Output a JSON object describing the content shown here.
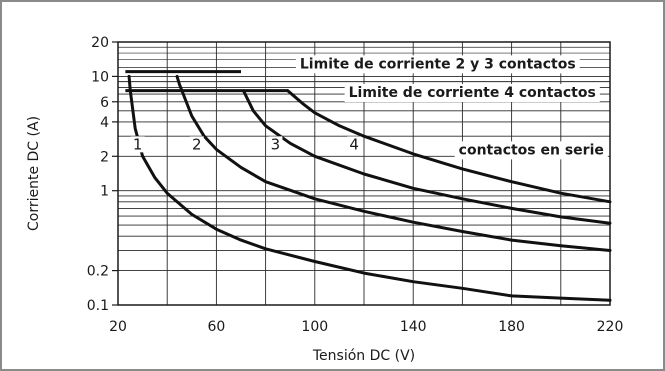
{
  "chart_data": {
    "type": "line",
    "xlabel": "Tensión DC (V)",
    "ylabel": "Corriente DC (A)",
    "xlim": [
      20,
      220
    ],
    "ylim": [
      0.1,
      20
    ],
    "yscale": "log",
    "grid": true,
    "x_ticks": [
      20,
      60,
      100,
      140,
      180,
      220
    ],
    "x_tick_labels": [
      "20",
      "60",
      "100",
      "140",
      "180",
      "220"
    ],
    "y_ticks": [
      0.1,
      0.2,
      1,
      2,
      4,
      6,
      10,
      20
    ],
    "y_tick_labels": [
      "0.1",
      "0.2",
      "1",
      "2",
      "4",
      "6",
      "10",
      "20"
    ],
    "annotations": [
      {
        "text": "Limite de corriente 2 y 3 contactos",
        "x": 150,
        "y": 13
      },
      {
        "text": "Limite de corriente 4 contactos",
        "x": 164,
        "y": 7.3
      },
      {
        "text": "contactos en serie",
        "x": 188,
        "y": 2.3
      }
    ],
    "limit_lines": [
      {
        "label": "Limite de corriente 2 y 3 contactos",
        "x": [
          23,
          70
        ],
        "y": [
          11,
          11
        ]
      },
      {
        "label": "Limite de corriente 4 contactos",
        "x": [
          23,
          89
        ],
        "y": [
          7.5,
          7.5
        ]
      }
    ],
    "series": [
      {
        "label": "1",
        "label_x": 28,
        "label_y": 2.3,
        "x": [
          24.5,
          25,
          27,
          30,
          35,
          40,
          50,
          60,
          70,
          80,
          100,
          120,
          140,
          160,
          180,
          200,
          220
        ],
        "y": [
          10,
          7.5,
          3.5,
          2.0,
          1.3,
          0.95,
          0.62,
          0.46,
          0.37,
          0.31,
          0.24,
          0.19,
          0.16,
          0.14,
          0.12,
          0.115,
          0.11
        ]
      },
      {
        "label": "2",
        "label_x": 52,
        "label_y": 2.3,
        "x": [
          44,
          45,
          50,
          55,
          60,
          70,
          80,
          100,
          120,
          140,
          160,
          180,
          200,
          220
        ],
        "y": [
          10,
          8.5,
          4.5,
          3.0,
          2.3,
          1.6,
          1.2,
          0.85,
          0.66,
          0.53,
          0.44,
          0.37,
          0.33,
          0.3
        ]
      },
      {
        "label": "3",
        "label_x": 84,
        "label_y": 2.3,
        "x": [
          71,
          75,
          80,
          90,
          100,
          120,
          140,
          160,
          180,
          200,
          220
        ],
        "y": [
          7.5,
          5.0,
          3.7,
          2.6,
          2.0,
          1.4,
          1.05,
          0.85,
          0.7,
          0.59,
          0.52
        ]
      },
      {
        "label": "4",
        "label_x": 116,
        "label_y": 2.3,
        "x": [
          89,
          95,
          100,
          110,
          120,
          140,
          160,
          180,
          200,
          220
        ],
        "y": [
          7.5,
          5.8,
          4.8,
          3.7,
          3.0,
          2.1,
          1.55,
          1.2,
          0.95,
          0.8
        ]
      }
    ],
    "series_caption": "contactos en serie"
  }
}
